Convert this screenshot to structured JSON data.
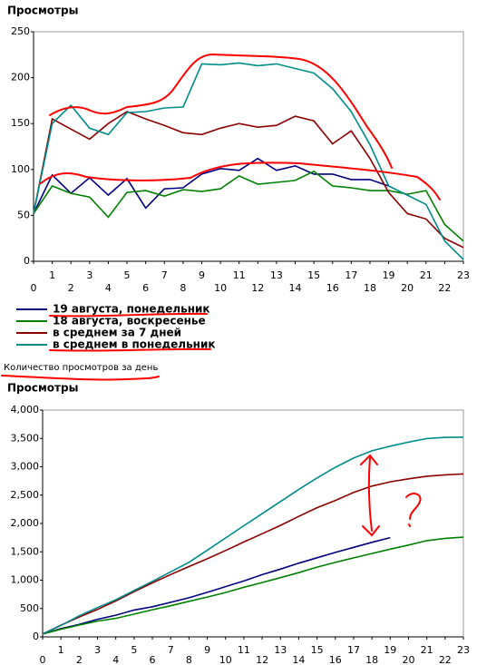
{
  "chart_data": [
    {
      "type": "line",
      "title": "Просмотры",
      "caption": "Количество просмотров за день",
      "legend": "bottom-left",
      "x": [
        0,
        1,
        2,
        3,
        4,
        5,
        6,
        7,
        8,
        9,
        10,
        11,
        12,
        13,
        14,
        15,
        16,
        17,
        18,
        19,
        20,
        21,
        22,
        23
      ],
      "xlim": [
        0,
        23
      ],
      "xticks": [
        0,
        1,
        2,
        3,
        4,
        5,
        6,
        7,
        8,
        9,
        10,
        11,
        12,
        13,
        14,
        15,
        16,
        17,
        18,
        19,
        20,
        21,
        22,
        23
      ],
      "ylim": [
        0,
        250
      ],
      "yticks": [
        0,
        50,
        100,
        150,
        200,
        250
      ],
      "series": [
        {
          "name": "19 августа, понедельник",
          "color": "#000080",
          "values": [
            52,
            94,
            74,
            91,
            72,
            90,
            58,
            79,
            80,
            95,
            101,
            99,
            112,
            99,
            104,
            95,
            95,
            89,
            89,
            82,
            null,
            null,
            null,
            null
          ]
        },
        {
          "name": "18 августа, воскресенье",
          "color": "#008000",
          "values": [
            52,
            82,
            74,
            70,
            48,
            75,
            77,
            71,
            78,
            76,
            79,
            93,
            84,
            86,
            88,
            98,
            82,
            80,
            77,
            77,
            73,
            77,
            40,
            22
          ]
        },
        {
          "name": "в среднем за 7 дней",
          "color": "#8b0000",
          "values": [
            52,
            155,
            144,
            133,
            150,
            163,
            155,
            148,
            140,
            138,
            145,
            150,
            146,
            148,
            158,
            153,
            128,
            142,
            112,
            75,
            52,
            46,
            25,
            15
          ]
        },
        {
          "name": "в среднем в понедельник",
          "color": "#008b8b",
          "values": [
            52,
            150,
            170,
            145,
            138,
            162,
            163,
            167,
            168,
            215,
            214,
            216,
            213,
            215,
            210,
            205,
            188,
            163,
            127,
            82,
            72,
            62,
            22,
            2
          ]
        }
      ]
    },
    {
      "type": "line",
      "title": "Просмотры",
      "x": [
        0,
        1,
        2,
        3,
        4,
        5,
        6,
        7,
        8,
        9,
        10,
        11,
        12,
        13,
        14,
        15,
        16,
        17,
        18,
        19,
        20,
        21,
        22,
        23
      ],
      "xlim": [
        0,
        23
      ],
      "xticks": [
        0,
        1,
        2,
        3,
        4,
        5,
        6,
        7,
        8,
        9,
        10,
        11,
        12,
        13,
        14,
        15,
        16,
        17,
        18,
        19,
        20,
        21,
        22,
        23
      ],
      "ylim": [
        0,
        4000
      ],
      "yticks": [
        0,
        500,
        {
          "value": 1000,
          "label": "1,000"
        },
        {
          "value": 1500,
          "label": "1,500"
        },
        {
          "value": 2000,
          "label": "2,000"
        },
        {
          "value": 2500,
          "label": "2,500"
        },
        {
          "value": 3000,
          "label": "3,000"
        },
        {
          "value": 3500,
          "label": "3,500"
        },
        {
          "value": 4000,
          "label": "4,000"
        }
      ],
      "series": [
        {
          "name": "19 августа, понедельник",
          "color": "#000080",
          "values": [
            52,
            146,
            220,
            311,
            383,
            473,
            531,
            610,
            690,
            785,
            886,
            985,
            1097,
            1196,
            1300,
            1395,
            1490,
            1579,
            1668,
            1750,
            null,
            null,
            null,
            null
          ]
        },
        {
          "name": "18 августа, воскресенье",
          "color": "#008000",
          "values": [
            52,
            134,
            208,
            278,
            326,
            401,
            478,
            549,
            627,
            703,
            782,
            875,
            959,
            1045,
            1133,
            1231,
            1313,
            1393,
            1470,
            1547,
            1620,
            1697,
            1737,
            1759
          ]
        },
        {
          "name": "в среднем за 7 дней",
          "color": "#8b0000",
          "values": [
            52,
            207,
            351,
            484,
            634,
            797,
            952,
            1100,
            1240,
            1378,
            1523,
            1673,
            1819,
            1967,
            2125,
            2278,
            2406,
            2548,
            2660,
            2735,
            2787,
            2833,
            2858,
            2873
          ]
        },
        {
          "name": "в среднем в понедельник",
          "color": "#008b8b",
          "values": [
            52,
            202,
            372,
            517,
            655,
            817,
            980,
            1147,
            1315,
            1530,
            1744,
            1960,
            2173,
            2388,
            2598,
            2803,
            2991,
            3154,
            3281,
            3363,
            3435,
            3497,
            3519,
            3521
          ]
        }
      ]
    }
  ]
}
